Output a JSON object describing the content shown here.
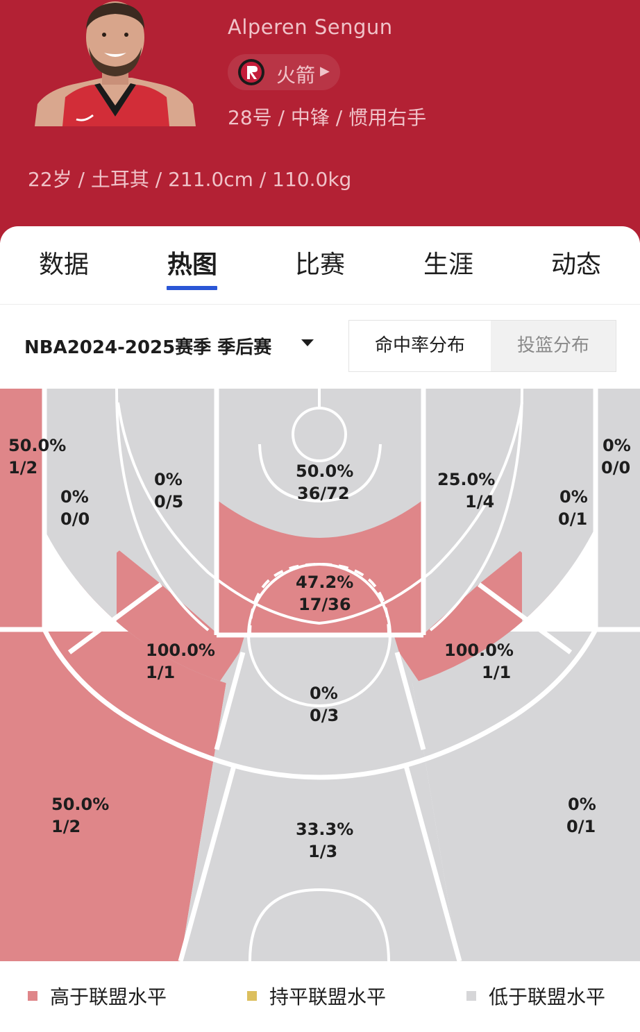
{
  "colors": {
    "header_bg": "#b32134",
    "above": "#df8689",
    "below": "#d6d6d8",
    "even": "#dcbf5e",
    "accent": "#2a56d6"
  },
  "player": {
    "name": "Alperen Sengun",
    "team": "火箭",
    "team_arrow_icon": "caret-right-icon",
    "role": "28号 / 中锋 / 惯用右手",
    "bio": "22岁 / 土耳其 / 211.0cm / 110.0kg"
  },
  "tabs": [
    {
      "label": "数据",
      "active": false
    },
    {
      "label": "热图",
      "active": true
    },
    {
      "label": "比赛",
      "active": false
    },
    {
      "label": "生涯",
      "active": false
    },
    {
      "label": "动态",
      "active": false
    }
  ],
  "filter": {
    "season": "NBA2024-2025赛季 季后赛",
    "toggle": [
      {
        "label": "命中率分布",
        "selected": true
      },
      {
        "label": "投篮分布",
        "selected": false
      }
    ]
  },
  "zones": {
    "left_corner_three": {
      "pct": "50.0%",
      "ratio": "1/2",
      "level": "above"
    },
    "left_baseline_mid": {
      "pct": "0%",
      "ratio": "0/0",
      "level": "below"
    },
    "left_short_mid": {
      "pct": "0%",
      "ratio": "0/5",
      "level": "below"
    },
    "paint_baseline": {
      "pct": "50.0%",
      "ratio": "36/72",
      "level": "below"
    },
    "right_short_mid": {
      "pct": "25.0%",
      "ratio": "1/4",
      "level": "below"
    },
    "right_baseline_mid": {
      "pct": "0%",
      "ratio": "0/1",
      "level": "below"
    },
    "right_corner_three": {
      "pct": "0%",
      "ratio": "0/0",
      "level": "below"
    },
    "paint": {
      "pct": "47.2%",
      "ratio": "17/36",
      "level": "above"
    },
    "left_elbow_mid": {
      "pct": "100.0%",
      "ratio": "1/1",
      "level": "above"
    },
    "right_elbow_mid": {
      "pct": "100.0%",
      "ratio": "1/1",
      "level": "above"
    },
    "top_mid": {
      "pct": "0%",
      "ratio": "0/3",
      "level": "below"
    },
    "left_wing_three": {
      "pct": "50.0%",
      "ratio": "1/2",
      "level": "above"
    },
    "top_three": {
      "pct": "33.3%",
      "ratio": "1/3",
      "level": "below"
    },
    "right_wing_three": {
      "pct": "0%",
      "ratio": "0/1",
      "level": "below"
    }
  },
  "legend": [
    {
      "label": "高于联盟水平",
      "color": "#df8689"
    },
    {
      "label": "持平联盟水平",
      "color": "#dcbf5e"
    },
    {
      "label": "低于联盟水平",
      "color": "#d6d6d8"
    }
  ]
}
